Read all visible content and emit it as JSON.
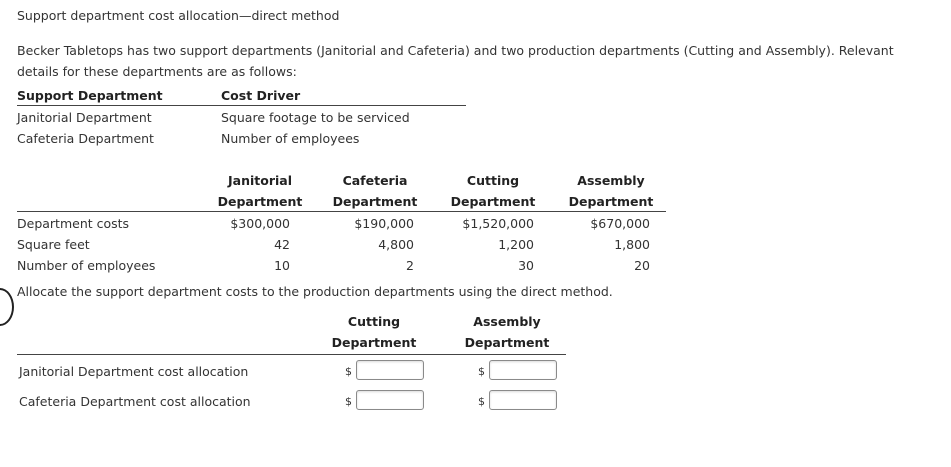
{
  "title": "Support department cost allocation—direct method",
  "intro": "Becker Tabletops has two support departments (Janitorial and Cafeteria) and two production departments (Cutting and Assembly). Relevant details for these departments are as follows:",
  "driver_table": {
    "headers": [
      "Support Department",
      "Cost Driver"
    ],
    "rows": [
      [
        "Janitorial Department",
        "Square footage to be serviced"
      ],
      [
        "Cafeteria Department",
        "Number of employees"
      ]
    ]
  },
  "details_table": {
    "col_headers": [
      {
        "line1": "Janitorial",
        "line2": "Department"
      },
      {
        "line1": "Cafeteria",
        "line2": "Department"
      },
      {
        "line1": "Cutting",
        "line2": "Department"
      },
      {
        "line1": "Assembly",
        "line2": "Department"
      }
    ],
    "rows": [
      {
        "label": "Department costs",
        "values": [
          "$300,000",
          "$190,000",
          "$1,520,000",
          "$670,000"
        ]
      },
      {
        "label": "Square feet",
        "values": [
          "42",
          "4,800",
          "1,200",
          "1,800"
        ]
      },
      {
        "label": "Number of employees",
        "values": [
          "10",
          "2",
          "30",
          "20"
        ]
      }
    ]
  },
  "instruction": "Allocate the support department costs to the production departments using the direct method.",
  "allocation_table": {
    "col_headers": [
      {
        "line1": "Cutting",
        "line2": "Department"
      },
      {
        "line1": "Assembly",
        "line2": "Department"
      }
    ],
    "currency_symbol": "$",
    "rows": [
      {
        "label": "Janitorial Department cost allocation",
        "cutting_value": "",
        "assembly_value": ""
      },
      {
        "label": "Cafeteria Department cost allocation",
        "cutting_value": "",
        "assembly_value": ""
      }
    ]
  }
}
